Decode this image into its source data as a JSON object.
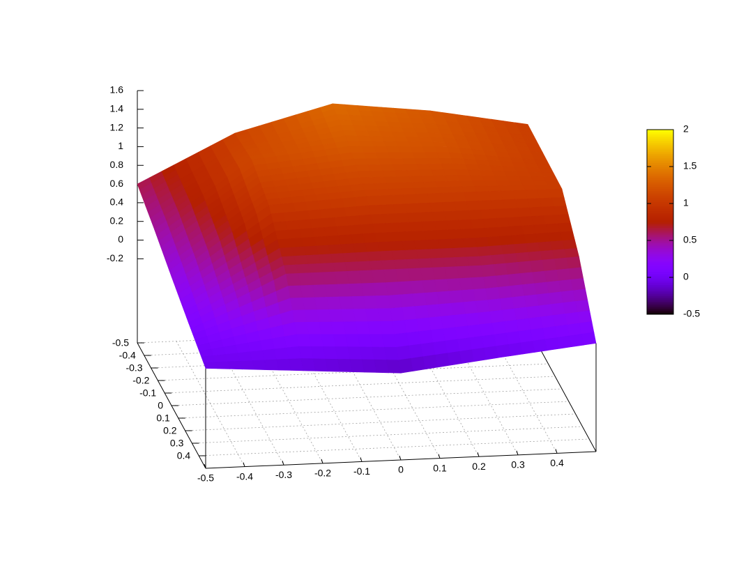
{
  "chart_data": {
    "type": "surface",
    "x": [
      -0.5,
      -0.25,
      0,
      0.25,
      0.5
    ],
    "y": [
      -0.5,
      -0.25,
      0,
      0.25,
      0.5
    ],
    "z": [
      [
        0.6,
        1.1,
        1.37,
        1.25,
        1.06
      ],
      [
        0.45,
        1.15,
        1.25,
        1.2,
        1.05
      ],
      [
        0.28,
        1.0,
        1.05,
        1.05,
        1.04
      ],
      [
        0.12,
        0.6,
        0.6,
        0.6,
        0.65
      ],
      [
        -0.03,
        -0.1,
        -0.17,
        -0.05,
        0.06
      ]
    ],
    "xlim": [
      -0.5,
      0.5
    ],
    "xticks": [
      -0.5,
      -0.4,
      -0.3,
      -0.2,
      -0.1,
      0,
      0.1,
      0.2,
      0.3,
      0.4
    ],
    "ylim": [
      -0.5,
      0.5
    ],
    "yticks": [
      -0.5,
      -0.4,
      -0.3,
      -0.2,
      -0.1,
      0,
      0.1,
      0.2,
      0.3,
      0.4
    ],
    "zlim": [
      -0.2,
      1.6
    ],
    "zticks": [
      -0.2,
      0,
      0.2,
      0.4,
      0.6,
      0.8,
      1,
      1.2,
      1.4,
      1.6
    ],
    "cblim": [
      -0.5,
      2
    ],
    "cbticks": [
      -0.5,
      0,
      0.5,
      1,
      1.5,
      2
    ],
    "grid": true
  }
}
